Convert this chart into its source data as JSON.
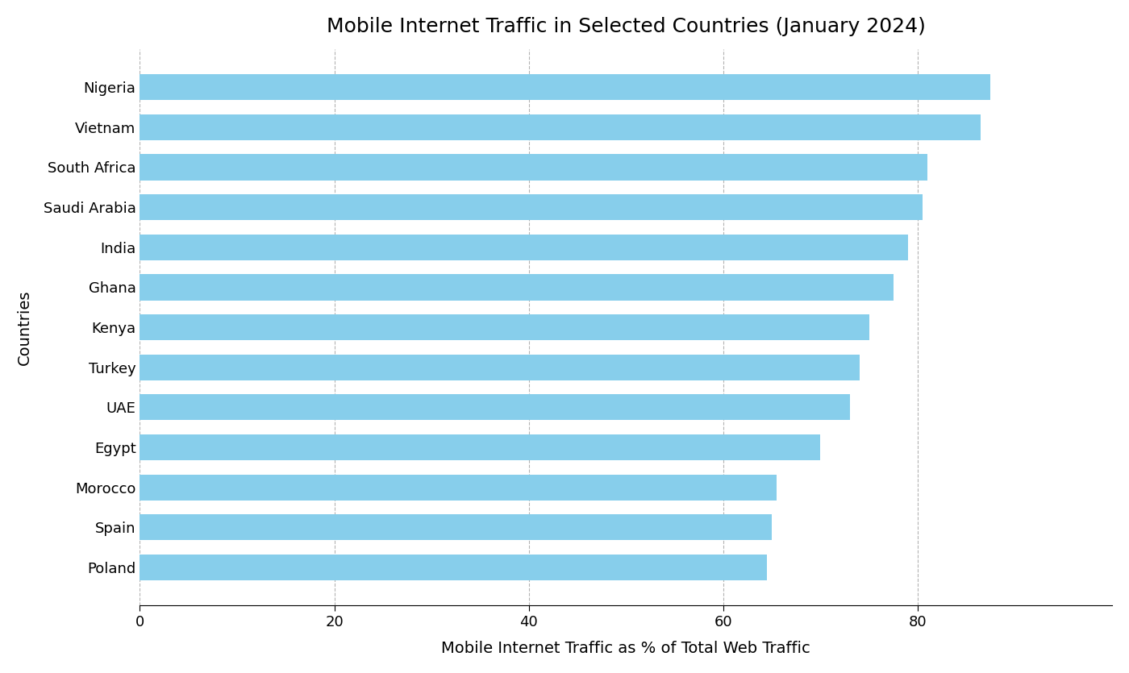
{
  "title": "Mobile Internet Traffic in Selected Countries (January 2024)",
  "xlabel": "Mobile Internet Traffic as % of Total Web Traffic",
  "ylabel": "Countries",
  "countries": [
    "Nigeria",
    "Vietnam",
    "South Africa",
    "Saudi Arabia",
    "India",
    "Ghana",
    "Kenya",
    "Turkey",
    "UAE",
    "Egypt",
    "Morocco",
    "Spain",
    "Poland"
  ],
  "values": [
    87.5,
    86.5,
    81.0,
    80.5,
    79.0,
    77.5,
    75.0,
    74.0,
    73.0,
    70.0,
    65.5,
    65.0,
    64.5
  ],
  "bar_color": "#87CEEB",
  "background_color": "#ffffff",
  "xlim": [
    0,
    100
  ],
  "xticks": [
    0,
    20,
    40,
    60,
    80
  ],
  "title_fontsize": 18,
  "axis_label_fontsize": 14,
  "tick_fontsize": 13,
  "bar_height": 0.65
}
